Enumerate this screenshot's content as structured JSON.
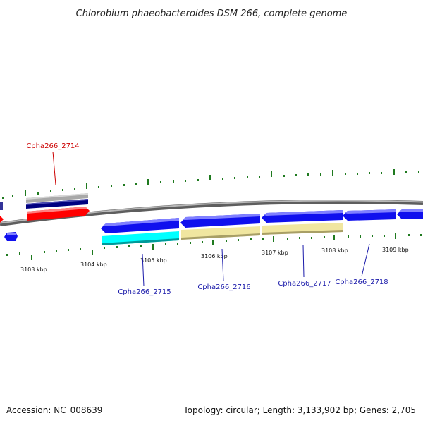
{
  "title": "Chlorobium phaeobacteroides DSM 266, complete genome",
  "footer": {
    "accession": "Accession: NC_008639",
    "summary": "Topology: circular; Length: 3,133,902 bp; Genes: 2,705"
  },
  "kbp_labels": [
    "3103 kbp",
    "3104 kbp",
    "3105 kbp",
    "3106 kbp",
    "3107 kbp",
    "3108 kbp",
    "3109 kbp"
  ],
  "gene_labels": [
    {
      "text": "Cpha266_2714",
      "color": "#cc0000"
    },
    {
      "text": "Cpha266_2715",
      "color": "#1a1aaa"
    },
    {
      "text": "Cpha266_2716",
      "color": "#1a1aaa"
    },
    {
      "text": "Cpha266_2717",
      "color": "#1a1aaa"
    },
    {
      "text": "Cpha266_2718",
      "color": "#1a1aaa"
    }
  ],
  "colors": {
    "backbone": "#7a7a7a",
    "tick": "#1f7a1f",
    "red_gene": "#ff0000",
    "blue_gene": "#1010ee",
    "cyan_gene": "#00ffff",
    "khaki_gene": "#f0e6a0",
    "navy_gene": "#000080",
    "grey_gene": "#a8a8a8"
  }
}
